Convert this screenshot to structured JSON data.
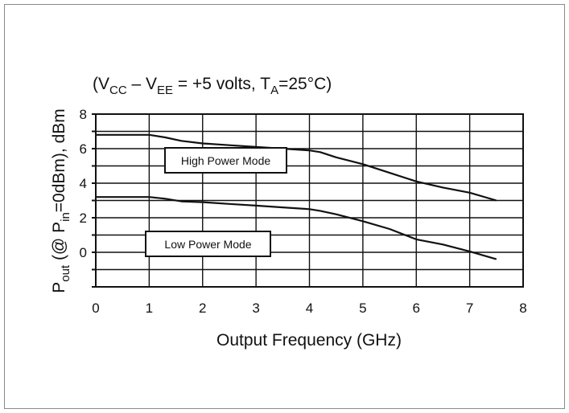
{
  "chart_data": {
    "type": "line",
    "title": "(V_CC – V_EE = +5 volts, T_A=25°C)",
    "title_parts": {
      "open": "(V",
      "cc_sub": "CC",
      "dash": " – V",
      "ee_sub": "EE",
      "mid": " = +5 volts, T",
      "ta_sub": "A",
      "end": "=25°C)"
    },
    "xlabel": "Output Frequency (GHz)",
    "ylabel": "P_out (@ P_in=0dBm), dBm",
    "ylabel_parts": {
      "p1": "P",
      "out_sub": "out",
      "p2": " (@ P",
      "in_sub": "in",
      "p3": "=0dBm), dBm"
    },
    "xlim": [
      0,
      8
    ],
    "ylim": [
      -2,
      8
    ],
    "x_ticks": [
      "0",
      "1",
      "2",
      "3",
      "4",
      "5",
      "6",
      "7",
      "8"
    ],
    "y_ticks": [
      "0",
      "2",
      "4",
      "6",
      "8"
    ],
    "grid": true,
    "series": [
      {
        "name": "High Power Mode",
        "x": [
          0,
          0.5,
          1.0,
          1.3,
          1.6,
          2.0,
          2.5,
          3.0,
          3.5,
          4.0,
          4.2,
          4.5,
          5.0,
          5.5,
          6.0,
          6.5,
          7.0,
          7.5
        ],
        "y": [
          6.8,
          6.8,
          6.8,
          6.65,
          6.45,
          6.3,
          6.2,
          6.1,
          6.0,
          5.9,
          5.8,
          5.5,
          5.1,
          4.6,
          4.1,
          3.75,
          3.45,
          3.0
        ]
      },
      {
        "name": "Low Power Mode",
        "x": [
          0,
          0.5,
          1.0,
          1.3,
          1.6,
          2.0,
          2.5,
          3.0,
          3.5,
          4.0,
          4.2,
          4.5,
          5.0,
          5.5,
          6.0,
          6.5,
          7.0,
          7.5
        ],
        "y": [
          3.2,
          3.2,
          3.2,
          3.1,
          2.95,
          2.9,
          2.8,
          2.7,
          2.6,
          2.5,
          2.4,
          2.2,
          1.8,
          1.35,
          0.75,
          0.45,
          0.05,
          -0.4
        ]
      }
    ]
  }
}
